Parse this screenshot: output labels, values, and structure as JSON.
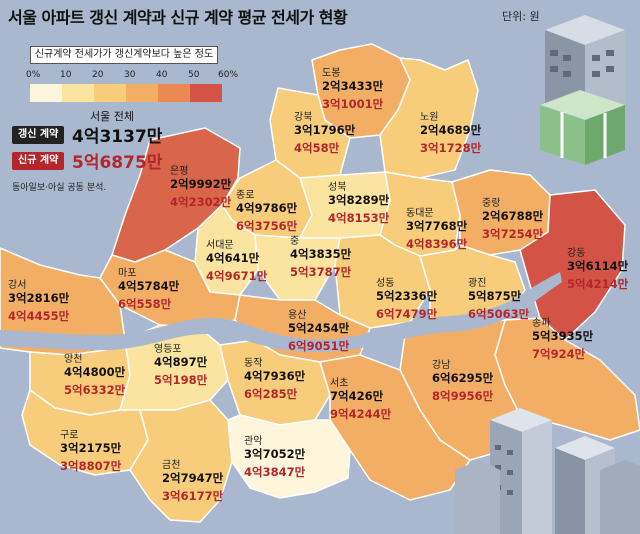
{
  "header": {
    "title": "서울 아파트 갱신 계약과 신규 계약 평균 전세가 현황",
    "unit": "단위: 원"
  },
  "legend": {
    "caption": "신규계약 전세가가 갱신계약보다 높은 정도",
    "ticks": [
      "0%",
      "10",
      "20",
      "30",
      "40",
      "50",
      "60%"
    ],
    "colors": [
      "#fdf6dc",
      "#fbe3a0",
      "#f7cd7b",
      "#f3ae66",
      "#ea8a52",
      "#d35446"
    ]
  },
  "summary": {
    "heading": "서울 전체",
    "renew_label": "갱신 계약",
    "renew_value": "4억3137만",
    "new_label": "신규 계약",
    "new_value": "5억6875만"
  },
  "source": "동아일보·아실 공동 분석.",
  "districts": [
    {
      "name": "도봉",
      "renew": "2억3433만",
      "new": "3억1001만",
      "ratio_pct": 32
    },
    {
      "name": "강북",
      "renew": "3억1796만",
      "new": "4억58만",
      "ratio_pct": 26
    },
    {
      "name": "노원",
      "renew": "2억4689만",
      "new": "3억1728만",
      "ratio_pct": 29
    },
    {
      "name": "은평",
      "renew": "2억9992만",
      "new": "4억2302만",
      "ratio_pct": 41
    },
    {
      "name": "종로",
      "renew": "4억9786만",
      "new": "6억3756만",
      "ratio_pct": 28
    },
    {
      "name": "성북",
      "renew": "3억8289만",
      "new": "4억8153만",
      "ratio_pct": 26
    },
    {
      "name": "동대문",
      "renew": "3억7768만",
      "new": "4억8396만",
      "ratio_pct": 28
    },
    {
      "name": "중랑",
      "renew": "2억6788만",
      "new": "3억7254만",
      "ratio_pct": 39
    },
    {
      "name": "서대문",
      "renew": "4억641만",
      "new": "4억9671만",
      "ratio_pct": 22
    },
    {
      "name": "중",
      "renew": "4억3835만",
      "new": "5억3787만",
      "ratio_pct": 23
    },
    {
      "name": "마포",
      "renew": "4억5784만",
      "new": "6억558만",
      "ratio_pct": 32
    },
    {
      "name": "성동",
      "renew": "5억2336만",
      "new": "6억7479만",
      "ratio_pct": 29
    },
    {
      "name": "광진",
      "renew": "5억875만",
      "new": "6억5063만",
      "ratio_pct": 28
    },
    {
      "name": "강동",
      "renew": "3억6114만",
      "new": "5억4214만",
      "ratio_pct": 50
    },
    {
      "name": "강서",
      "renew": "3억2816만",
      "new": "4억4455만",
      "ratio_pct": 35
    },
    {
      "name": "용산",
      "renew": "5억2454만",
      "new": "6억9051만",
      "ratio_pct": 32
    },
    {
      "name": "송파",
      "renew": "5억3935만",
      "new": "7억924만",
      "ratio_pct": 31
    },
    {
      "name": "양천",
      "renew": "4억4800만",
      "new": "5억6332만",
      "ratio_pct": 26
    },
    {
      "name": "영등포",
      "renew": "4억897만",
      "new": "5억198만",
      "ratio_pct": 23
    },
    {
      "name": "동작",
      "renew": "4억7936만",
      "new": "6억285만",
      "ratio_pct": 26
    },
    {
      "name": "강남",
      "renew": "6억6295만",
      "new": "8억9956만",
      "ratio_pct": 36
    },
    {
      "name": "서초",
      "renew": "7억426만",
      "new": "9억4244만",
      "ratio_pct": 34
    },
    {
      "name": "구로",
      "renew": "3억2175만",
      "new": "3억8807만",
      "ratio_pct": 21
    },
    {
      "name": "관악",
      "renew": "3억7052만",
      "new": "4억3847만",
      "ratio_pct": 18
    },
    {
      "name": "금천",
      "renew": "2억7947만",
      "new": "3억6177만",
      "ratio_pct": 29
    }
  ]
}
